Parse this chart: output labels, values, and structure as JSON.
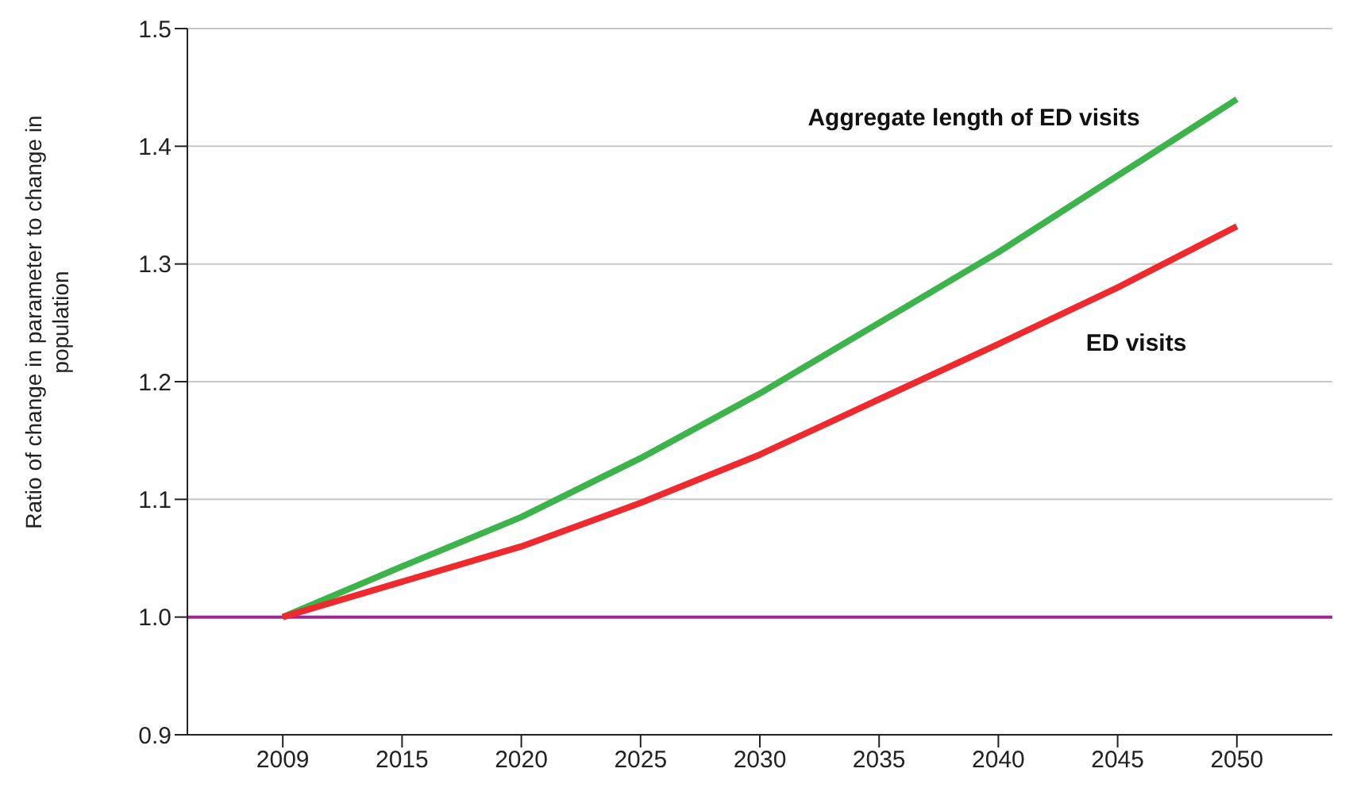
{
  "chart_data": {
    "type": "line",
    "ylabel": "Ratio of change in parameter to change in population",
    "categories": [
      "2009",
      "2015",
      "2020",
      "2025",
      "2030",
      "2035",
      "2040",
      "2045",
      "2050"
    ],
    "series": [
      {
        "name": "Aggregate length of ED visits",
        "color": "#3cb44b",
        "values": [
          1.0,
          1.043,
          1.085,
          1.135,
          1.19,
          1.25,
          1.31,
          1.375,
          1.44
        ]
      },
      {
        "name": "ED visits",
        "color": "#ee2a2e",
        "values": [
          1.0,
          1.03,
          1.06,
          1.097,
          1.138,
          1.185,
          1.232,
          1.28,
          1.332
        ]
      }
    ],
    "ylim": [
      0.9,
      1.5
    ],
    "yticks": [
      {
        "value": 0.9,
        "label": "0.9"
      },
      {
        "value": 1.0,
        "label": "1.0"
      },
      {
        "value": 1.1,
        "label": "1.1"
      },
      {
        "value": 1.2,
        "label": "1.2"
      },
      {
        "value": 1.3,
        "label": "1.3"
      },
      {
        "value": 1.4,
        "label": "1.4"
      },
      {
        "value": 1.5,
        "label": "1.5"
      }
    ],
    "grid": "y",
    "legend": false,
    "marker": "none",
    "line_style": "solid",
    "ref_lines": [
      {
        "axis": "y",
        "value": 1.0,
        "color": "#9b2a8f"
      }
    ]
  }
}
